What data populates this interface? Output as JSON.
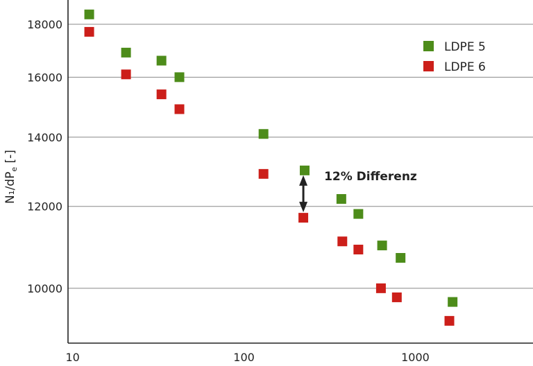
{
  "chart_data": {
    "type": "scatter",
    "title": "",
    "xlabel": "",
    "ylabel": "N₁/dP",
    "ylabel_sub": "e",
    "ylabel_suffix": " [-]",
    "x_scale": "log",
    "y_scale": "log",
    "xlim": [
      9.4,
      4860
    ],
    "ylim": [
      8850,
      19000
    ],
    "x_ticks": [
      {
        "value": 10,
        "label": "10"
      },
      {
        "value": 100,
        "label": "100"
      },
      {
        "value": 1000,
        "label": "1000"
      }
    ],
    "y_ticks": [
      {
        "value": 10000,
        "label": "10000"
      },
      {
        "value": 12000,
        "label": "12000"
      },
      {
        "value": 14000,
        "label": "14000"
      },
      {
        "value": 16000,
        "label": "16000"
      },
      {
        "value": 18000,
        "label": "18000"
      }
    ],
    "grid": "horizontal",
    "legend_position": "top-right",
    "series": [
      {
        "name": "LDPE 5",
        "color": "#4d8c1a",
        "points": [
          {
            "x": 12.5,
            "y": 18400
          },
          {
            "x": 20.5,
            "y": 16900
          },
          {
            "x": 33,
            "y": 16600
          },
          {
            "x": 42,
            "y": 16000
          },
          {
            "x": 130,
            "y": 14100
          },
          {
            "x": 226,
            "y": 13000
          },
          {
            "x": 370,
            "y": 12200
          },
          {
            "x": 465,
            "y": 11800
          },
          {
            "x": 640,
            "y": 11000
          },
          {
            "x": 820,
            "y": 10700
          },
          {
            "x": 1650,
            "y": 9700
          }
        ]
      },
      {
        "name": "LDPE 6",
        "color": "#cc1f1a",
        "points": [
          {
            "x": 12.5,
            "y": 17700
          },
          {
            "x": 20.5,
            "y": 16100
          },
          {
            "x": 33,
            "y": 15400
          },
          {
            "x": 42,
            "y": 14900
          },
          {
            "x": 130,
            "y": 12900
          },
          {
            "x": 222,
            "y": 11700
          },
          {
            "x": 375,
            "y": 11100
          },
          {
            "x": 465,
            "y": 10900
          },
          {
            "x": 630,
            "y": 10000
          },
          {
            "x": 780,
            "y": 9800
          },
          {
            "x": 1580,
            "y": 9300
          }
        ]
      }
    ],
    "annotation": {
      "text": "12% Differenz",
      "x": 222,
      "y_from": 13000,
      "y_to": 11700
    }
  }
}
